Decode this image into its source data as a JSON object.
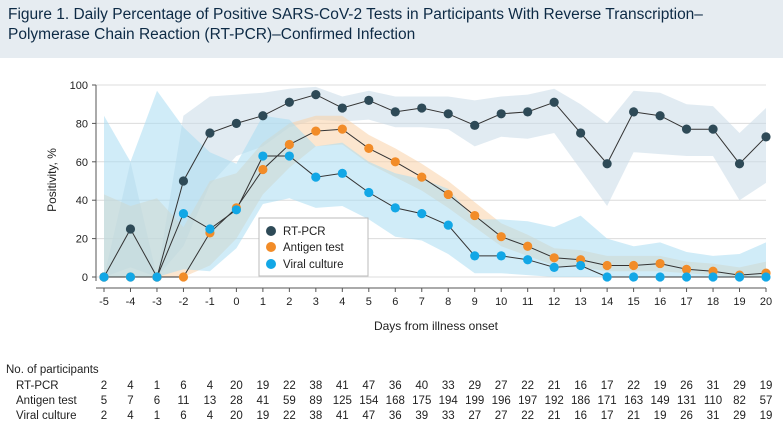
{
  "figure": {
    "title": "Figure 1. Daily Percentage of Positive SARS-CoV-2 Tests in Participants With Reverse Transcription–Polymerase Chain Reaction (RT-PCR)–Confirmed Infection"
  },
  "chart_data": {
    "type": "line",
    "xlabel": "Days from illness onset",
    "ylabel": "Positivity, %",
    "x": [
      -5,
      -4,
      -3,
      -2,
      -1,
      0,
      1,
      2,
      3,
      4,
      5,
      6,
      7,
      8,
      9,
      10,
      11,
      12,
      13,
      14,
      15,
      16,
      17,
      18,
      19,
      20
    ],
    "xlim": [
      -5,
      20
    ],
    "ylim": [
      0,
      100
    ],
    "yticks": [
      0,
      20,
      40,
      60,
      80,
      100
    ],
    "grid": true,
    "legend_position": "lower-left",
    "series": [
      {
        "name": "RT-PCR",
        "color": "#2e4a57",
        "band_color": "#c9dbe8",
        "values": [
          0,
          25,
          0,
          50,
          75,
          80,
          84,
          91,
          95,
          88,
          92,
          86,
          88,
          85,
          79,
          85,
          86,
          91,
          75,
          59,
          86,
          84,
          77,
          77,
          59,
          73
        ],
        "ci_lower": [
          0,
          5,
          0,
          16,
          48,
          63,
          68,
          78,
          82,
          81,
          82,
          78,
          78,
          77,
          68,
          73,
          72,
          75,
          56,
          37,
          65,
          64,
          63,
          63,
          40,
          49
        ],
        "ci_upper": [
          0,
          60,
          0,
          84,
          94,
          95,
          96,
          98,
          99,
          94,
          97,
          94,
          94,
          94,
          92,
          94,
          95,
          98,
          90,
          80,
          97,
          96,
          90,
          89,
          75,
          88
        ]
      },
      {
        "name": "Antigen test",
        "color": "#f28c28",
        "band_color": "#f9d2a8",
        "values": [
          0,
          0,
          0,
          0,
          23,
          36,
          56,
          69,
          76,
          77,
          67,
          60,
          52,
          43,
          32,
          21,
          16,
          10,
          9,
          6,
          6,
          7,
          4,
          3,
          1,
          2
        ],
        "ci_lower": [
          0,
          0,
          0,
          0,
          6,
          20,
          43,
          57,
          68,
          69,
          59,
          52,
          45,
          36,
          26,
          16,
          11,
          6,
          5,
          3,
          3,
          3,
          2,
          1,
          0,
          0
        ],
        "ci_upper": [
          43,
          37,
          41,
          26,
          50,
          54,
          70,
          80,
          84,
          84,
          74,
          67,
          59,
          50,
          39,
          28,
          22,
          15,
          14,
          11,
          11,
          11,
          8,
          7,
          5,
          8
        ]
      },
      {
        "name": "Viral culture",
        "color": "#12a7e6",
        "band_color": "#a9dcf3",
        "values": [
          0,
          0,
          0,
          33,
          25,
          35,
          63,
          63,
          52,
          54,
          44,
          36,
          33,
          27,
          11,
          11,
          9,
          5,
          6,
          0,
          0,
          0,
          0,
          0,
          0,
          0
        ],
        "ci_lower": [
          0,
          0,
          0,
          4,
          3,
          15,
          38,
          41,
          36,
          37,
          30,
          21,
          19,
          12,
          2,
          2,
          1,
          0,
          0,
          0,
          0,
          0,
          0,
          0,
          0,
          0
        ],
        "ci_upper": [
          84,
          60,
          97,
          78,
          65,
          59,
          84,
          82,
          68,
          70,
          60,
          54,
          51,
          46,
          30,
          30,
          29,
          26,
          32,
          20,
          16,
          18,
          13,
          11,
          12,
          18
        ]
      }
    ]
  },
  "participants": {
    "heading": "No. of participants",
    "rows": [
      {
        "label": "RT-PCR",
        "counts": [
          "2",
          "4",
          "1",
          "6",
          "4",
          "20",
          "19",
          "22",
          "38",
          "41",
          "47",
          "36",
          "40",
          "33",
          "29",
          "27",
          "22",
          "21",
          "16",
          "17",
          "22",
          "19",
          "26",
          "31",
          "29",
          "19"
        ]
      },
      {
        "label": "Antigen test",
        "counts": [
          "5",
          "7",
          "6",
          "11",
          "13",
          "28",
          "41",
          "59",
          "89",
          "125",
          "154",
          "168",
          "175",
          "194",
          "199",
          "196",
          "197",
          "192",
          "186",
          "171",
          "163",
          "149",
          "131",
          "110",
          "82",
          "57"
        ]
      },
      {
        "label": "Viral culture",
        "counts": [
          "2",
          "4",
          "1",
          "6",
          "4",
          "20",
          "19",
          "22",
          "38",
          "41",
          "47",
          "36",
          "39",
          "33",
          "27",
          "27",
          "22",
          "21",
          "16",
          "17",
          "21",
          "19",
          "26",
          "31",
          "29",
          "19"
        ]
      }
    ]
  }
}
